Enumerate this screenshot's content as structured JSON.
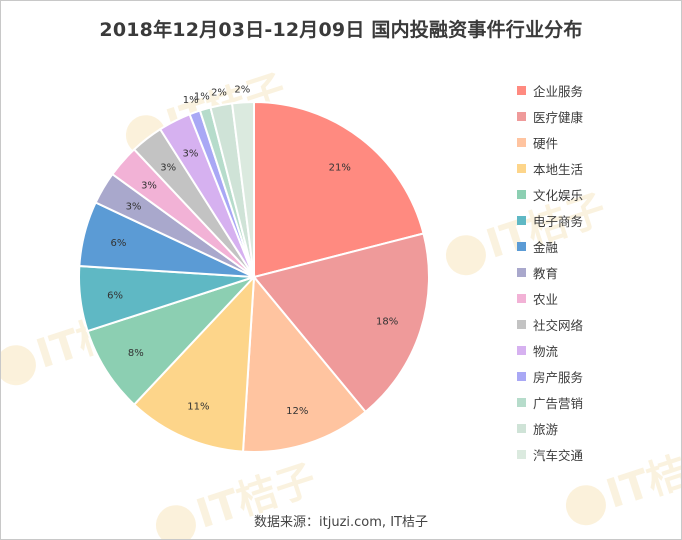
{
  "title": "2018年12月03日-12月09日 国内投融资事件行业分布",
  "footer": "数据来源：itjuzi.com, IT桔子",
  "watermark": "IT桔子",
  "chart_data": {
    "type": "pie",
    "title": "2018年12月03日-12月09日 国内投融资事件行业分布",
    "legend_position": "right",
    "start_angle": "12 o'clock, clockwise",
    "slices": [
      {
        "label": "企业服务",
        "value": 21,
        "value_label": "21%",
        "color": "#ff8a80"
      },
      {
        "label": "医疗健康",
        "value": 18,
        "value_label": "18%",
        "color": "#ef9a9a"
      },
      {
        "label": "硬件",
        "value": 12,
        "value_label": "12%",
        "color": "#ffc4a0"
      },
      {
        "label": "本地生活",
        "value": 11,
        "value_label": "11%",
        "color": "#fdd58a"
      },
      {
        "label": "文化娱乐",
        "value": 8,
        "value_label": "8%",
        "color": "#8ccfb2"
      },
      {
        "label": "电子商务",
        "value": 6,
        "value_label": "6%",
        "color": "#5fb8c4"
      },
      {
        "label": "金融",
        "value": 6,
        "value_label": "6%",
        "color": "#5b9bd5"
      },
      {
        "label": "教育",
        "value": 3,
        "value_label": "3%",
        "color": "#a9a8cc"
      },
      {
        "label": "农业",
        "value": 3,
        "value_label": "3%",
        "color": "#f2b2d6"
      },
      {
        "label": "社交网络",
        "value": 3,
        "value_label": "3%",
        "color": "#c3c3c3"
      },
      {
        "label": "物流",
        "value": 3,
        "value_label": "3%",
        "color": "#d6b1f0"
      },
      {
        "label": "房产服务",
        "value": 1,
        "value_label": "1%",
        "color": "#a9a8f5"
      },
      {
        "label": "广告营销",
        "value": 1,
        "value_label": "1%",
        "color": "#b6dccb"
      },
      {
        "label": "旅游",
        "value": 2,
        "value_label": "2%",
        "color": "#cfe3d7"
      },
      {
        "label": "汽车交通",
        "value": 2,
        "value_label": "2%",
        "color": "#dbeadf"
      }
    ]
  }
}
